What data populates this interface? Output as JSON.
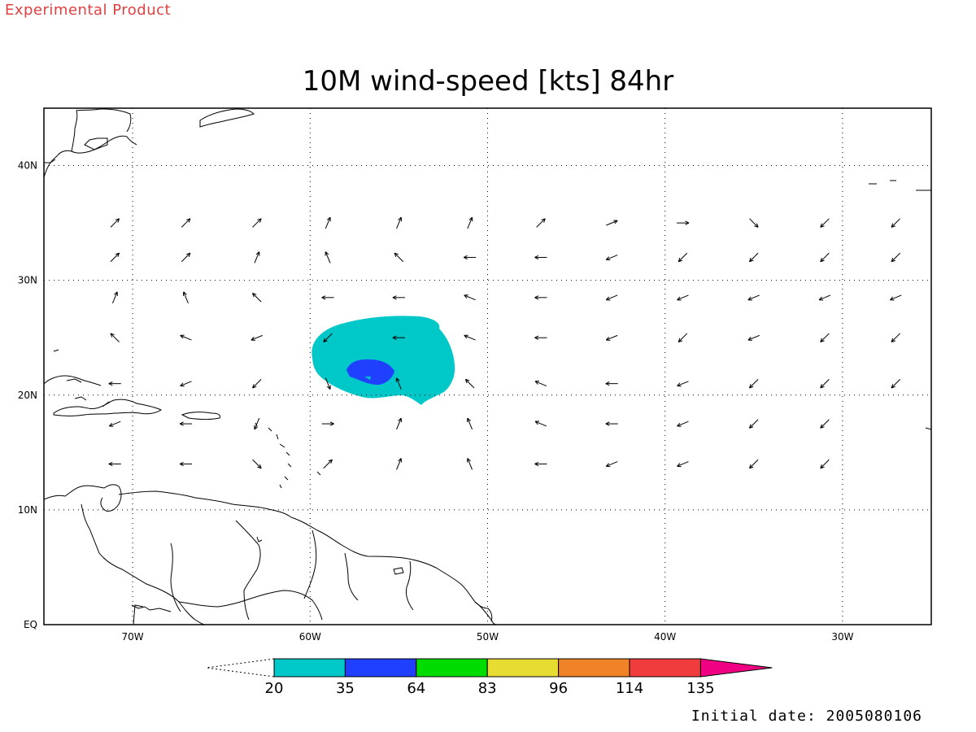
{
  "header": {
    "tag": "Experimental Product",
    "title": "10M wind-speed [kts] 84hr"
  },
  "footer": {
    "init_date": "Initial date: 2005080106"
  },
  "map": {
    "lon_range": [
      -75,
      -25
    ],
    "lat_range": [
      0,
      45
    ],
    "lon_ticks": [
      {
        "lon": -70,
        "label": "70W"
      },
      {
        "lon": -60,
        "label": "60W"
      },
      {
        "lon": -50,
        "label": "50W"
      },
      {
        "lon": -40,
        "label": "40W"
      },
      {
        "lon": -30,
        "label": "30W"
      }
    ],
    "lat_ticks": [
      {
        "lat": 0,
        "label": "EQ"
      },
      {
        "lat": 10,
        "label": "10N"
      },
      {
        "lat": 20,
        "label": "20N"
      },
      {
        "lat": 30,
        "label": "30N"
      },
      {
        "lat": 40,
        "label": "40N"
      }
    ],
    "grid": "dotted"
  },
  "colorbar": {
    "thresholds": [
      "20",
      "35",
      "64",
      "83",
      "96",
      "114",
      "135"
    ],
    "colors": [
      "#00c8c8",
      "#2040ff",
      "#00dc00",
      "#e6dc32",
      "#f08228",
      "#f03c3c",
      "#f00082"
    ]
  },
  "chart_data": {
    "type": "heatmap",
    "title": "10M wind-speed [kts] 84hr",
    "xlabel": "",
    "ylabel": "",
    "contours": [
      {
        "level": 20,
        "color": "#00c8c8",
        "center_lon": -55.5,
        "center_lat": 23.3
      },
      {
        "level": 35,
        "color": "#2040ff",
        "center_lon": -57.0,
        "center_lat": 21.5
      }
    ],
    "wind_vectors": [
      {
        "lon": -71,
        "lat": 35,
        "dir": "NE"
      },
      {
        "lon": -67,
        "lat": 35,
        "dir": "NE"
      },
      {
        "lon": -63,
        "lat": 35,
        "dir": "NE"
      },
      {
        "lon": -59,
        "lat": 35,
        "dir": "NNE"
      },
      {
        "lon": -55,
        "lat": 35,
        "dir": "NNE"
      },
      {
        "lon": -51,
        "lat": 35,
        "dir": "NNE"
      },
      {
        "lon": -47,
        "lat": 35,
        "dir": "NE"
      },
      {
        "lon": -43,
        "lat": 35,
        "dir": "ENE"
      },
      {
        "lon": -39,
        "lat": 35,
        "dir": "E"
      },
      {
        "lon": -35,
        "lat": 35,
        "dir": "SE"
      },
      {
        "lon": -31,
        "lat": 35,
        "dir": "SW"
      },
      {
        "lon": -27,
        "lat": 35,
        "dir": "SW"
      },
      {
        "lon": -71,
        "lat": 32,
        "dir": "NE"
      },
      {
        "lon": -67,
        "lat": 32,
        "dir": "NE"
      },
      {
        "lon": -63,
        "lat": 32,
        "dir": "NNE"
      },
      {
        "lon": -59,
        "lat": 32,
        "dir": "NNW"
      },
      {
        "lon": -55,
        "lat": 32,
        "dir": "NW"
      },
      {
        "lon": -51,
        "lat": 32,
        "dir": "W"
      },
      {
        "lon": -47,
        "lat": 32,
        "dir": "W"
      },
      {
        "lon": -43,
        "lat": 32,
        "dir": "WSW"
      },
      {
        "lon": -39,
        "lat": 32,
        "dir": "SW"
      },
      {
        "lon": -35,
        "lat": 32,
        "dir": "SW"
      },
      {
        "lon": -31,
        "lat": 32,
        "dir": "SW"
      },
      {
        "lon": -27,
        "lat": 32,
        "dir": "SW"
      },
      {
        "lon": -71,
        "lat": 28.5,
        "dir": "NNE"
      },
      {
        "lon": -67,
        "lat": 28.5,
        "dir": "NNW"
      },
      {
        "lon": -63,
        "lat": 28.5,
        "dir": "NW"
      },
      {
        "lon": -59,
        "lat": 28.5,
        "dir": "W"
      },
      {
        "lon": -55,
        "lat": 28.5,
        "dir": "W"
      },
      {
        "lon": -51,
        "lat": 28.5,
        "dir": "WNW"
      },
      {
        "lon": -47,
        "lat": 28.5,
        "dir": "W"
      },
      {
        "lon": -43,
        "lat": 28.5,
        "dir": "WSW"
      },
      {
        "lon": -39,
        "lat": 28.5,
        "dir": "WSW"
      },
      {
        "lon": -35,
        "lat": 28.5,
        "dir": "WSW"
      },
      {
        "lon": -31,
        "lat": 28.5,
        "dir": "WSW"
      },
      {
        "lon": -27,
        "lat": 28.5,
        "dir": "WSW"
      },
      {
        "lon": -71,
        "lat": 25,
        "dir": "NW"
      },
      {
        "lon": -67,
        "lat": 25,
        "dir": "WNW"
      },
      {
        "lon": -63,
        "lat": 25,
        "dir": "WSW"
      },
      {
        "lon": -59,
        "lat": 25,
        "dir": "SW"
      },
      {
        "lon": -55,
        "lat": 25,
        "dir": "W"
      },
      {
        "lon": -51,
        "lat": 25,
        "dir": "WNW"
      },
      {
        "lon": -47,
        "lat": 25,
        "dir": "W"
      },
      {
        "lon": -43,
        "lat": 25,
        "dir": "WSW"
      },
      {
        "lon": -39,
        "lat": 25,
        "dir": "SW"
      },
      {
        "lon": -35,
        "lat": 25,
        "dir": "WSW"
      },
      {
        "lon": -31,
        "lat": 25,
        "dir": "SW"
      },
      {
        "lon": -27,
        "lat": 25,
        "dir": "SW"
      },
      {
        "lon": -71,
        "lat": 21,
        "dir": "W"
      },
      {
        "lon": -67,
        "lat": 21,
        "dir": "WSW"
      },
      {
        "lon": -63,
        "lat": 21,
        "dir": "SW"
      },
      {
        "lon": -59,
        "lat": 21,
        "dir": "SSE"
      },
      {
        "lon": -55,
        "lat": 21,
        "dir": "NNW"
      },
      {
        "lon": -51,
        "lat": 21,
        "dir": "NW"
      },
      {
        "lon": -47,
        "lat": 21,
        "dir": "WNW"
      },
      {
        "lon": -43,
        "lat": 21,
        "dir": "W"
      },
      {
        "lon": -39,
        "lat": 21,
        "dir": "WSW"
      },
      {
        "lon": -35,
        "lat": 21,
        "dir": "SW"
      },
      {
        "lon": -31,
        "lat": 21,
        "dir": "SW"
      },
      {
        "lon": -27,
        "lat": 21,
        "dir": "SW"
      },
      {
        "lon": -71,
        "lat": 17.5,
        "dir": "WSW"
      },
      {
        "lon": -67,
        "lat": 17.5,
        "dir": "W"
      },
      {
        "lon": -63,
        "lat": 17.5,
        "dir": "SSW"
      },
      {
        "lon": -59,
        "lat": 17.5,
        "dir": "E"
      },
      {
        "lon": -55,
        "lat": 17.5,
        "dir": "NNE"
      },
      {
        "lon": -51,
        "lat": 17.5,
        "dir": "NNW"
      },
      {
        "lon": -47,
        "lat": 17.5,
        "dir": "WNW"
      },
      {
        "lon": -43,
        "lat": 17.5,
        "dir": "W"
      },
      {
        "lon": -39,
        "lat": 17.5,
        "dir": "WSW"
      },
      {
        "lon": -35,
        "lat": 17.5,
        "dir": "SW"
      },
      {
        "lon": -31,
        "lat": 17.5,
        "dir": "SW"
      },
      {
        "lon": -71,
        "lat": 14,
        "dir": "W"
      },
      {
        "lon": -67,
        "lat": 14,
        "dir": "W"
      },
      {
        "lon": -63,
        "lat": 14,
        "dir": "SE"
      },
      {
        "lon": -59,
        "lat": 14,
        "dir": "NE"
      },
      {
        "lon": -55,
        "lat": 14,
        "dir": "NNE"
      },
      {
        "lon": -51,
        "lat": 14,
        "dir": "NNW"
      },
      {
        "lon": -47,
        "lat": 14,
        "dir": "W"
      },
      {
        "lon": -43,
        "lat": 14,
        "dir": "WSW"
      },
      {
        "lon": -39,
        "lat": 14,
        "dir": "WSW"
      },
      {
        "lon": -35,
        "lat": 14,
        "dir": "SW"
      },
      {
        "lon": -31,
        "lat": 14,
        "dir": "SW"
      }
    ]
  }
}
